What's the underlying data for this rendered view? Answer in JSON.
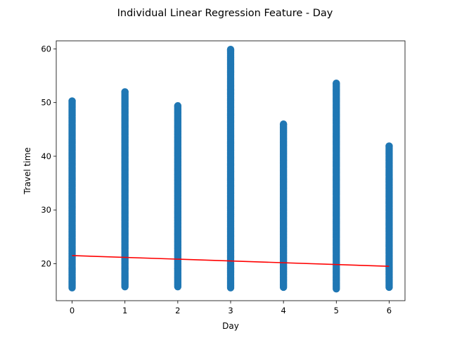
{
  "chart_data": {
    "type": "scatter",
    "title": "Individual Linear Regression Feature - Day",
    "xlabel": "Day",
    "ylabel": "Travel time",
    "xlim": [
      -0.3,
      6.3
    ],
    "ylim": [
      13.1,
      61.5
    ],
    "xticks": [
      0,
      1,
      2,
      3,
      4,
      5,
      6
    ],
    "yticks": [
      20,
      30,
      40,
      50,
      60
    ],
    "grid": false,
    "series": [
      {
        "type": "scatter",
        "color": "#1f77b4",
        "x": [
          0,
          1,
          2,
          3,
          4,
          5,
          6
        ],
        "y_min": [
          15.5,
          15.7,
          15.7,
          15.5,
          15.6,
          15.3,
          15.6
        ],
        "y_max": [
          50.3,
          52.0,
          49.4,
          59.9,
          46.0,
          53.6,
          41.9
        ]
      },
      {
        "type": "line",
        "color": "#ff0000",
        "x": [
          0,
          6
        ],
        "y": [
          21.5,
          19.5
        ]
      }
    ]
  }
}
